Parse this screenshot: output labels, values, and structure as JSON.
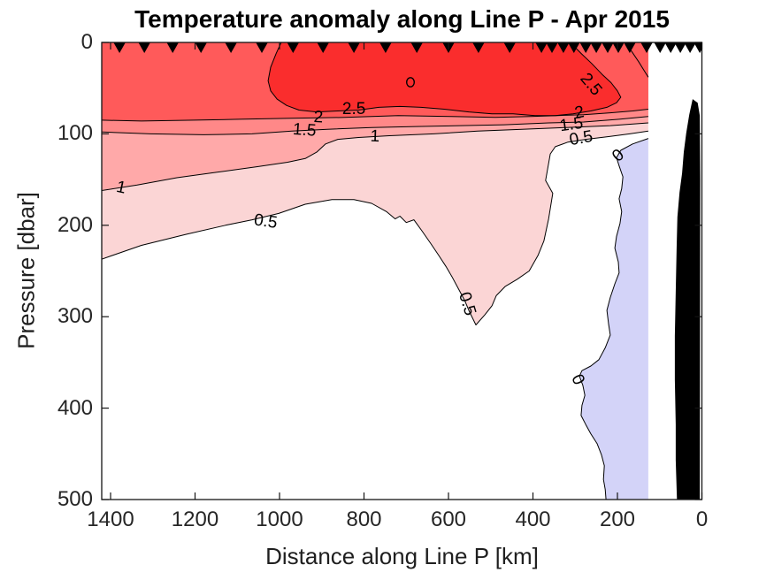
{
  "figure": {
    "title": "Temperature anomaly along Line P - Apr 2015",
    "background": "#FFFFFF"
  },
  "chart_data": {
    "type": "filled_contour_section",
    "title": "Temperature anomaly along Line P - Apr 2015",
    "xlabel": "Distance along Line P [km]",
    "ylabel": "Pressure [dbar]",
    "units": {
      "x": "km",
      "y": "dbar",
      "z": "degC anomaly"
    },
    "x_ticks": [
      1400,
      1200,
      1000,
      800,
      600,
      400,
      200,
      0
    ],
    "y_ticks": [
      0,
      100,
      200,
      300,
      400,
      500
    ],
    "x_range": [
      1421,
      0
    ],
    "y_range": [
      0,
      500
    ],
    "axes_reversed": {
      "x": true,
      "y": true
    },
    "grid": false,
    "contour_levels": [
      -0.5,
      0,
      0.5,
      1,
      1.5,
      2,
      2.5,
      3
    ],
    "band_colors": {
      "neg0_5_0": "#D3D3F8",
      "b0_0_5": "#FFFFFF",
      "b0_5_1": "#FBD5D5",
      "b1_1_5": "#FFA9A9",
      "b1_5_2": "#FF8888",
      "b2_2_5": "#FF5A5A",
      "b2_5_3": "#FA2D2D"
    },
    "line_color": "#000000",
    "axis_color": "#151515",
    "tick_label_color": "#262626",
    "data_edge_km": 127,
    "station_distances_km": [
      1379,
      1320,
      1253,
      1186,
      1115,
      1042,
      968,
      897,
      824,
      749,
      675,
      600,
      529,
      455,
      380,
      355,
      328,
      303,
      275,
      250,
      223,
      198,
      171,
      131,
      99,
      74,
      51,
      28,
      5
    ],
    "contours": {
      "c2": [
        [
          1421,
          85
        ],
        [
          1327,
          86
        ],
        [
          1201,
          85
        ],
        [
          1096,
          84
        ],
        [
          971,
          83
        ],
        [
          845,
          82
        ],
        [
          719,
          80
        ],
        [
          594,
          81
        ],
        [
          489,
          82
        ],
        [
          405,
          81
        ],
        [
          342,
          80
        ],
        [
          280,
          79
        ],
        [
          217,
          77
        ],
        [
          164,
          75
        ],
        [
          127,
          73
        ]
      ],
      "c1_5": [
        [
          1421,
          98
        ],
        [
          1306,
          100
        ],
        [
          1180,
          101
        ],
        [
          1065,
          100
        ],
        [
          971,
          97
        ],
        [
          887,
          95
        ],
        [
          782,
          93
        ],
        [
          677,
          92
        ],
        [
          573,
          91
        ],
        [
          468,
          90
        ],
        [
          363,
          88
        ],
        [
          280,
          87
        ],
        [
          196,
          84
        ],
        [
          127,
          81
        ]
      ],
      "c1": [
        [
          1421,
          162
        ],
        [
          1337,
          156
        ],
        [
          1243,
          148
        ],
        [
          1148,
          142
        ],
        [
          1054,
          136
        ],
        [
          981,
          131
        ],
        [
          939,
          127
        ],
        [
          912,
          120
        ],
        [
          891,
          111
        ],
        [
          862,
          106
        ],
        [
          813,
          104
        ],
        [
          740,
          102
        ],
        [
          635,
          100
        ],
        [
          531,
          97
        ],
        [
          426,
          95
        ],
        [
          321,
          93
        ],
        [
          217,
          91
        ],
        [
          127,
          88
        ]
      ],
      "c0_5": [
        [
          1421,
          237
        ],
        [
          1327,
          222
        ],
        [
          1222,
          210
        ],
        [
          1128,
          200
        ],
        [
          1065,
          194
        ],
        [
          1002,
          187
        ],
        [
          939,
          177
        ],
        [
          876,
          172
        ],
        [
          824,
          172
        ],
        [
          782,
          176
        ],
        [
          747,
          185
        ],
        [
          726,
          193
        ],
        [
          715,
          190
        ],
        [
          700,
          197
        ],
        [
          682,
          194
        ],
        [
          663,
          206
        ],
        [
          642,
          220
        ],
        [
          623,
          233
        ],
        [
          606,
          245
        ],
        [
          592,
          256
        ],
        [
          577,
          269
        ],
        [
          562,
          282
        ],
        [
          550,
          295
        ],
        [
          535,
          309
        ],
        [
          514,
          298
        ],
        [
          497,
          288
        ],
        [
          487,
          277
        ],
        [
          466,
          267
        ],
        [
          437,
          259
        ],
        [
          409,
          250
        ],
        [
          388,
          233
        ],
        [
          374,
          217
        ],
        [
          363,
          193
        ],
        [
          353,
          165
        ],
        [
          370,
          151
        ],
        [
          359,
          122
        ],
        [
          347,
          114
        ],
        [
          317,
          109
        ],
        [
          275,
          106
        ],
        [
          221,
          103
        ],
        [
          171,
          100
        ],
        [
          127,
          97
        ]
      ],
      "c0": [
        [
          127,
          105
        ],
        [
          164,
          111
        ],
        [
          192,
          118
        ],
        [
          202,
          126
        ],
        [
          196,
          135
        ],
        [
          187,
          147
        ],
        [
          190,
          160
        ],
        [
          196,
          171
        ],
        [
          190,
          185
        ],
        [
          194,
          198
        ],
        [
          202,
          212
        ],
        [
          206,
          225
        ],
        [
          198,
          240
        ],
        [
          196,
          252
        ],
        [
          206,
          264
        ],
        [
          217,
          279
        ],
        [
          225,
          293
        ],
        [
          221,
          308
        ],
        [
          217,
          320
        ],
        [
          229,
          334
        ],
        [
          244,
          347
        ],
        [
          263,
          354
        ],
        [
          284,
          359
        ],
        [
          290,
          365
        ],
        [
          282,
          375
        ],
        [
          277,
          386
        ],
        [
          284,
          397
        ],
        [
          286,
          408
        ],
        [
          275,
          418
        ],
        [
          263,
          428
        ],
        [
          248,
          439
        ],
        [
          238,
          451
        ],
        [
          231,
          463
        ],
        [
          233,
          478
        ],
        [
          229,
          489
        ],
        [
          227,
          500
        ]
      ],
      "c2_5_closed": [
        [
          996,
          0
        ],
        [
          1008,
          12
        ],
        [
          1021,
          27
        ],
        [
          1027,
          42
        ],
        [
          1021,
          53
        ],
        [
          1006,
          62
        ],
        [
          983,
          69
        ],
        [
          954,
          74
        ],
        [
          912,
          76
        ],
        [
          862,
          75
        ],
        [
          813,
          74
        ],
        [
          765,
          71
        ],
        [
          715,
          70
        ],
        [
          665,
          71
        ],
        [
          610,
          73
        ],
        [
          552,
          76
        ],
        [
          497,
          78
        ],
        [
          447,
          78
        ],
        [
          395,
          80
        ],
        [
          347,
          80
        ],
        [
          305,
          78
        ],
        [
          263,
          75
        ],
        [
          225,
          71
        ],
        [
          202,
          66
        ],
        [
          192,
          60
        ],
        [
          200,
          53
        ],
        [
          215,
          44
        ],
        [
          236,
          35
        ],
        [
          261,
          23
        ],
        [
          286,
          12
        ],
        [
          303,
          4
        ],
        [
          309,
          0
        ]
      ],
      "c2_top_right": [
        [
          181,
          0
        ],
        [
          166,
          10
        ],
        [
          150,
          21
        ],
        [
          135,
          32
        ],
        [
          127,
          38
        ]
      ],
      "c3_small_loop": {
        "center_km": 690,
        "center_dbar": 43.5,
        "rx_km": 9,
        "ry_dbar": 5
      }
    },
    "contour_labels": [
      {
        "text": "2.5",
        "km": 824,
        "dbar": 73,
        "rot": 0
      },
      {
        "text": "2.5",
        "km": 263,
        "dbar": 46,
        "rot": 50
      },
      {
        "text": "2",
        "km": 908,
        "dbar": 82,
        "rot": 3
      },
      {
        "text": "1.5",
        "km": 941,
        "dbar": 96,
        "rot": 4
      },
      {
        "text": "1",
        "km": 774,
        "dbar": 103,
        "rot": 2
      },
      {
        "text": "2",
        "km": 290,
        "dbar": 77,
        "rot": -10
      },
      {
        "text": "1.5",
        "km": 309,
        "dbar": 90,
        "rot": -8
      },
      {
        "text": "0.5",
        "km": 286,
        "dbar": 105,
        "rot": -10
      },
      {
        "text": "0",
        "km": 198,
        "dbar": 124,
        "rot": -40
      },
      {
        "text": "1",
        "km": 1375,
        "dbar": 159,
        "rot": 12
      },
      {
        "text": "0.5",
        "km": 1033,
        "dbar": 196,
        "rot": 8
      },
      {
        "text": "0.5",
        "km": 556,
        "dbar": 286,
        "rot": 73
      },
      {
        "text": "0",
        "km": 294,
        "dbar": 369,
        "rot": 65
      }
    ],
    "bathymetry_polygon": [
      [
        22,
        62
      ],
      [
        30,
        79
      ],
      [
        37,
        99
      ],
      [
        43,
        120
      ],
      [
        47,
        143
      ],
      [
        53,
        164
      ],
      [
        58,
        191
      ],
      [
        60,
        226
      ],
      [
        62,
        273
      ],
      [
        64,
        321
      ],
      [
        64,
        369
      ],
      [
        62,
        418
      ],
      [
        62,
        457
      ],
      [
        59,
        500
      ],
      [
        5,
        500
      ],
      [
        4,
        150
      ],
      [
        5,
        80
      ],
      [
        10,
        66
      ]
    ]
  }
}
